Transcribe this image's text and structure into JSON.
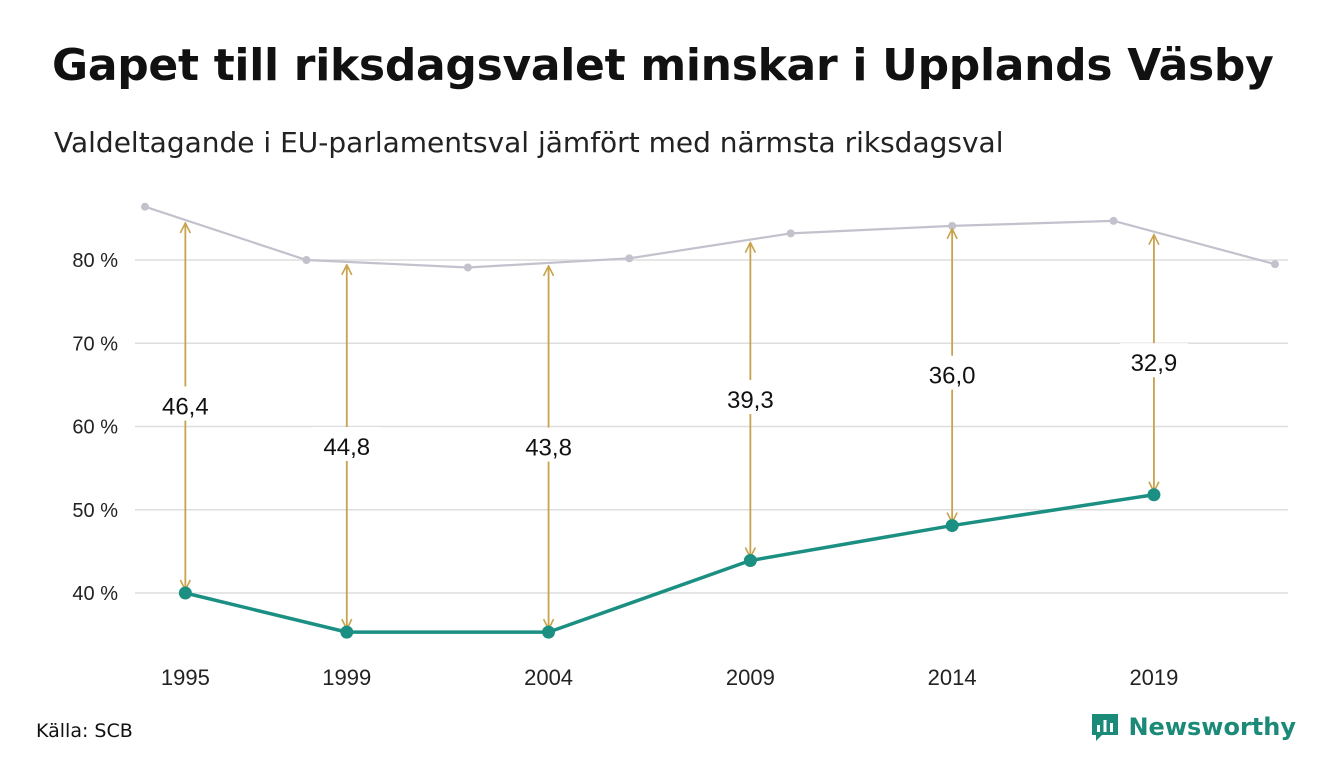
{
  "title": "Gapet till riksdagsvalet minskar i Upplands Väsby",
  "subtitle": "Valdeltagande i EU-parlamentsval jämfört med närmsta riksdagsval",
  "source": "Källa: SCB",
  "brand": "Newsworthy",
  "colors": {
    "eu_line": "#1b9082",
    "riksdag_line": "#c3c1cc",
    "arrow": "#c8a24c",
    "grid": "#dedede",
    "brand": "#1b8a78"
  },
  "chart_data": {
    "type": "line",
    "title": "Gapet till riksdagsvalet minskar i Upplands Väsby",
    "subtitle": "Valdeltagande i EU-parlamentsval jämfört med närmsta riksdagsval",
    "xlim": [
      1994,
      2022
    ],
    "ylim": [
      33,
      88
    ],
    "yticks": [
      40,
      50,
      60,
      70,
      80
    ],
    "ytick_labels": [
      "40 %",
      "50 %",
      "60 %",
      "70 %",
      "80 %"
    ],
    "xticks": [
      1995,
      1999,
      2004,
      2009,
      2014,
      2019
    ],
    "xtick_labels": [
      "1995",
      "1999",
      "2004",
      "2009",
      "2014",
      "2019"
    ],
    "grid": true,
    "series": [
      {
        "key": "riksdag",
        "x": [
          1994,
          1998,
          2002,
          2006,
          2010,
          2014,
          2018,
          2022
        ],
        "y": [
          86.4,
          80.0,
          79.1,
          80.2,
          83.2,
          84.1,
          84.7,
          79.5
        ]
      },
      {
        "key": "eu",
        "x": [
          1995,
          1999,
          2004,
          2009,
          2014,
          2019
        ],
        "y": [
          40.0,
          35.3,
          35.3,
          43.9,
          48.1,
          51.8
        ]
      }
    ],
    "gaps": [
      {
        "x": 1995,
        "label": "46,4"
      },
      {
        "x": 1999,
        "label": "44,8"
      },
      {
        "x": 2004,
        "label": "43,8"
      },
      {
        "x": 2009,
        "label": "39,3"
      },
      {
        "x": 2014,
        "label": "36,0"
      },
      {
        "x": 2019,
        "label": "32,9"
      }
    ]
  }
}
